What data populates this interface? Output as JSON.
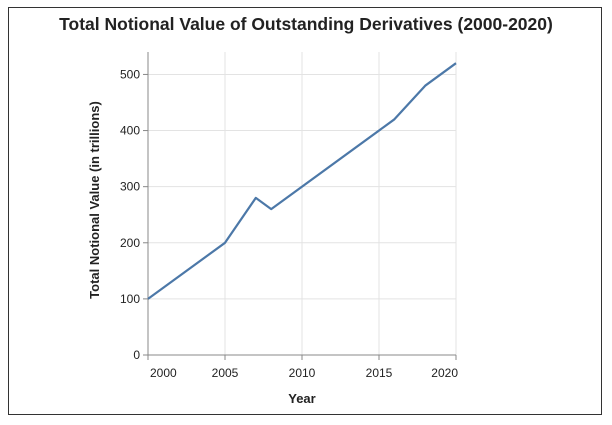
{
  "chart_data": {
    "type": "line",
    "title": "Total Notional Value of Outstanding Derivatives (2000-2020)",
    "xlabel": "Year",
    "ylabel": "Total Notional Value (in trillions)",
    "xlim": [
      2000,
      2020
    ],
    "ylim": [
      0,
      540
    ],
    "x_ticks": [
      2000,
      2005,
      2010,
      2015,
      2020
    ],
    "y_ticks": [
      0,
      100,
      200,
      300,
      400,
      500
    ],
    "grid": true,
    "series": [
      {
        "name": "Total Notional Value",
        "color": "#4c78a8",
        "x": [
          2000,
          2005,
          2007,
          2008,
          2016,
          2018,
          2020
        ],
        "values": [
          100,
          200,
          280,
          260,
          420,
          480,
          520
        ]
      }
    ]
  }
}
